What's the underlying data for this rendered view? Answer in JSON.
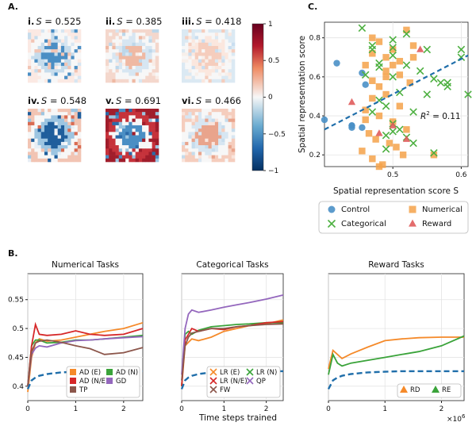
{
  "panel_letters": {
    "a": "A.",
    "b": "B.",
    "c": "C."
  },
  "maps": [
    {
      "roman": "i.",
      "symbol": "S",
      "value": "0.525",
      "label": " = 0.525",
      "colors": [
        "#fbe9e3",
        "#f7f7f7",
        "#c6dcec",
        "#4a8ec4",
        "#d7e6f2",
        "#f2c4b3"
      ]
    },
    {
      "roman": "ii.",
      "symbol": "S",
      "value": "0.385",
      "label": " = 0.385",
      "colors": [
        "#f4d7cc",
        "#f7f7f7",
        "#d7e6f2",
        "#efb9a3",
        "#bdd7ea",
        "#f9ece6"
      ]
    },
    {
      "roman": "iii.",
      "symbol": "S",
      "value": "0.418",
      "label": " = 0.418",
      "colors": [
        "#dbe9f3",
        "#f7f7f7",
        "#fbe7de",
        "#f5cdbd",
        "#c9def0",
        "#f7efea"
      ]
    },
    {
      "roman": "iv.",
      "symbol": "S",
      "value": "0.548",
      "label": " = 0.548",
      "colors": [
        "#f2c4b3",
        "#f7f7f7",
        "#9dc5e1",
        "#1f5e9c",
        "#d96b52",
        "#e8eef5"
      ]
    },
    {
      "roman": "v.",
      "symbol": "S",
      "value": "0.691",
      "label": " = 0.691",
      "colors": [
        "#a01d2b",
        "#c6323b",
        "#f7f7f7",
        "#4a8ec4",
        "#2b6aa8",
        "#9dc5e1"
      ]
    },
    {
      "roman": "vi.",
      "symbol": "S",
      "value": "0.466",
      "label": " = 0.466",
      "colors": [
        "#f5cdbd",
        "#f7f7f7",
        "#d7e6f2",
        "#e9a48c",
        "#c6dcec",
        "#f9e4dc"
      ]
    }
  ],
  "colorbar": {
    "ticks": [
      "1",
      "0.5",
      "0",
      "−0.5",
      "−1"
    ],
    "tick_values": [
      1,
      0.5,
      0,
      -0.5,
      -1
    ]
  },
  "chart_data": [
    {
      "id": "C",
      "type": "scatter",
      "xlabel": "Spatial representation score S",
      "ylabel": "Spatial representation score",
      "xlim": [
        0.4,
        0.61
      ],
      "ylim": [
        0.14,
        0.88
      ],
      "xticks": [
        0.5,
        0.6
      ],
      "xticklabels": [
        "0.5",
        "0.6"
      ],
      "yticks": [
        0.2,
        0.4,
        0.6,
        0.8
      ],
      "yticklabels": [
        "0.2",
        "0.4",
        "0.6",
        "0.8"
      ],
      "annotation": {
        "r_symbol": "R",
        "sup": "2",
        "text": " = 0.11"
      },
      "fit": {
        "x": [
          0.4,
          0.61
        ],
        "y": [
          0.33,
          0.71
        ]
      },
      "legend": [
        {
          "name": "Control",
          "marker": "circle",
          "color": "#4a90c7"
        },
        {
          "name": "Numerical",
          "marker": "square",
          "color": "#f4a24a"
        },
        {
          "name": "Categorical",
          "marker": "x",
          "color": "#4db040"
        },
        {
          "name": "Reward",
          "marker": "triangle",
          "color": "#e05c5c"
        }
      ],
      "series": [
        {
          "name": "Control",
          "x": [
            0.418,
            0.44,
            0.455,
            0.46,
            0.44,
            0.4,
            0.455,
            0.44
          ],
          "y": [
            0.67,
            0.35,
            0.34,
            0.56,
            0.34,
            0.38,
            0.62,
            0.35
          ]
        },
        {
          "name": "Numerical",
          "x": [
            0.47,
            0.48,
            0.49,
            0.5,
            0.51,
            0.52,
            0.49,
            0.47,
            0.46,
            0.48,
            0.5,
            0.53,
            0.525,
            0.47,
            0.49,
            0.51,
            0.46,
            0.48,
            0.5,
            0.52,
            0.465,
            0.475,
            0.495,
            0.505,
            0.515,
            0.47,
            0.485,
            0.56,
            0.455,
            0.48,
            0.46,
            0.47,
            0.49,
            0.51,
            0.53
          ],
          "y": [
            0.8,
            0.78,
            0.7,
            0.74,
            0.68,
            0.84,
            0.6,
            0.58,
            0.66,
            0.55,
            0.66,
            0.76,
            0.57,
            0.72,
            0.63,
            0.45,
            0.43,
            0.4,
            0.37,
            0.33,
            0.31,
            0.28,
            0.26,
            0.24,
            0.2,
            0.18,
            0.15,
            0.2,
            0.22,
            0.14,
            0.38,
            0.49,
            0.51,
            0.61,
            0.7
          ]
        },
        {
          "name": "Categorical",
          "x": [
            0.455,
            0.47,
            0.48,
            0.5,
            0.52,
            0.54,
            0.56,
            0.58,
            0.61,
            0.5,
            0.51,
            0.49,
            0.47,
            0.53,
            0.55,
            0.57,
            0.6,
            0.48,
            0.46,
            0.5,
            0.52,
            0.5,
            0.51,
            0.49,
            0.5,
            0.53,
            0.56,
            0.58,
            0.6,
            0.49,
            0.52,
            0.47,
            0.5,
            0.55,
            0.48
          ],
          "y": [
            0.85,
            0.74,
            0.67,
            0.79,
            0.82,
            0.63,
            0.59,
            0.55,
            0.51,
            0.6,
            0.52,
            0.45,
            0.42,
            0.42,
            0.51,
            0.57,
            0.7,
            0.65,
            0.61,
            0.75,
            0.66,
            0.36,
            0.33,
            0.3,
            0.32,
            0.26,
            0.21,
            0.57,
            0.74,
            0.23,
            0.29,
            0.76,
            0.71,
            0.74,
            0.48
          ]
        },
        {
          "name": "Reward",
          "x": [
            0.44,
            0.5,
            0.54,
            0.52,
            0.48
          ],
          "y": [
            0.47,
            0.35,
            0.74,
            0.28,
            0.31
          ]
        }
      ]
    },
    {
      "id": "B1",
      "type": "line",
      "title": "Numerical Tasks",
      "xlim": [
        0,
        2.4
      ],
      "ylim": [
        0.375,
        0.595
      ],
      "xticks": [
        0,
        1,
        2
      ],
      "xticklabels": [
        "0",
        "1",
        "2"
      ],
      "yticks": [
        0.4,
        0.45,
        0.5,
        0.55
      ],
      "yticklabels": [
        "0.4",
        "0.45",
        "0.5",
        "0.55"
      ],
      "x": [
        0,
        0.08,
        0.16,
        0.24,
        0.4,
        0.7,
        1.0,
        1.3,
        1.6,
        2.0,
        2.4
      ],
      "series": [
        {
          "name": "AD (E)",
          "color": "#f58a2a",
          "values": [
            0.39,
            0.45,
            0.475,
            0.482,
            0.478,
            0.48,
            0.485,
            0.49,
            0.495,
            0.5,
            0.51
          ]
        },
        {
          "name": "AD (N)",
          "color": "#3aa33a",
          "values": [
            0.4,
            0.47,
            0.48,
            0.48,
            0.475,
            0.476,
            0.48,
            0.48,
            0.482,
            0.485,
            0.488
          ]
        },
        {
          "name": "AD (N/E)",
          "color": "#d62728",
          "values": [
            0.4,
            0.47,
            0.507,
            0.49,
            0.488,
            0.49,
            0.496,
            0.49,
            0.488,
            0.49,
            0.5
          ]
        },
        {
          "name": "GD",
          "color": "#9467bd",
          "values": [
            0.4,
            0.455,
            0.466,
            0.47,
            0.468,
            0.475,
            0.479,
            0.48,
            0.482,
            0.484,
            0.486
          ]
        },
        {
          "name": "TP",
          "color": "#8c564b",
          "values": [
            0.4,
            0.46,
            0.475,
            0.478,
            0.48,
            0.476,
            0.47,
            0.465,
            0.455,
            0.458,
            0.467
          ]
        },
        {
          "name": "baseline",
          "color": "#1f6eaa",
          "dashed": true,
          "values": [
            0.395,
            0.41,
            0.415,
            0.418,
            0.421,
            0.424,
            0.425,
            0.426,
            0.426,
            0.426,
            0.426
          ]
        }
      ],
      "legend_rows": [
        [
          "AD (E)",
          "AD (N)"
        ],
        [
          "AD (N/E)",
          "GD"
        ],
        [
          "TP"
        ]
      ]
    },
    {
      "id": "B2",
      "type": "line",
      "title": "Categorical Tasks",
      "xlim": [
        0,
        2.4
      ],
      "ylim": [
        0.375,
        0.595
      ],
      "xticks": [
        0,
        1,
        2
      ],
      "xticklabels": [
        "0",
        "1",
        "2"
      ],
      "x": [
        0,
        0.08,
        0.16,
        0.24,
        0.4,
        0.7,
        1.0,
        1.3,
        1.6,
        2.0,
        2.4
      ],
      "series": [
        {
          "name": "LR (E)",
          "color": "#f58a2a",
          "values": [
            0.4,
            0.47,
            0.476,
            0.482,
            0.479,
            0.485,
            0.495,
            0.5,
            0.505,
            0.508,
            0.515
          ]
        },
        {
          "name": "LR (N)",
          "color": "#3aa33a",
          "values": [
            0.4,
            0.49,
            0.495,
            0.49,
            0.497,
            0.503,
            0.505,
            0.507,
            0.508,
            0.51,
            0.51
          ]
        },
        {
          "name": "LR (N/E)",
          "color": "#d62728",
          "values": [
            0.4,
            0.48,
            0.49,
            0.5,
            0.495,
            0.5,
            0.498,
            0.503,
            0.505,
            0.51,
            0.512
          ]
        },
        {
          "name": "QP",
          "color": "#9467bd",
          "values": [
            0.42,
            0.5,
            0.525,
            0.532,
            0.528,
            0.532,
            0.537,
            0.541,
            0.545,
            0.551,
            0.558
          ]
        },
        {
          "name": "FW",
          "color": "#8c564b",
          "values": [
            0.41,
            0.47,
            0.485,
            0.492,
            0.495,
            0.5,
            0.5,
            0.503,
            0.505,
            0.507,
            0.508
          ]
        },
        {
          "name": "baseline",
          "color": "#1f6eaa",
          "dashed": true,
          "values": [
            0.395,
            0.41,
            0.415,
            0.418,
            0.421,
            0.424,
            0.425,
            0.426,
            0.426,
            0.426,
            0.426
          ]
        }
      ],
      "legend_rows": [
        [
          "LR (E)",
          "LR (N)"
        ],
        [
          "LR (N/E)",
          "QP"
        ],
        [
          "FW"
        ]
      ]
    },
    {
      "id": "B3",
      "type": "line",
      "title": "Reward Tasks",
      "xlim": [
        0,
        2.4
      ],
      "ylim": [
        0.375,
        0.595
      ],
      "xticks": [
        0,
        1,
        2
      ],
      "xticklabels": [
        "0",
        "1",
        "2"
      ],
      "x": [
        0,
        0.08,
        0.16,
        0.24,
        0.4,
        0.7,
        1.0,
        1.3,
        1.6,
        2.0,
        2.4
      ],
      "series": [
        {
          "name": "RD",
          "color": "#f58a2a",
          "values": [
            0.43,
            0.462,
            0.455,
            0.448,
            0.456,
            0.468,
            0.479,
            0.482,
            0.484,
            0.485,
            0.485
          ]
        },
        {
          "name": "RE",
          "color": "#3aa33a",
          "values": [
            0.42,
            0.455,
            0.44,
            0.435,
            0.44,
            0.445,
            0.45,
            0.455,
            0.46,
            0.47,
            0.487
          ]
        },
        {
          "name": "baseline",
          "color": "#1f6eaa",
          "dashed": true,
          "values": [
            0.395,
            0.41,
            0.415,
            0.418,
            0.421,
            0.424,
            0.425,
            0.426,
            0.426,
            0.426,
            0.426
          ]
        }
      ],
      "legend_rows": [
        [
          "RD",
          "RE"
        ]
      ],
      "multiplier": {
        "base": "×10",
        "exp": "6"
      }
    }
  ],
  "xlabel_shared": "Time steps trained"
}
